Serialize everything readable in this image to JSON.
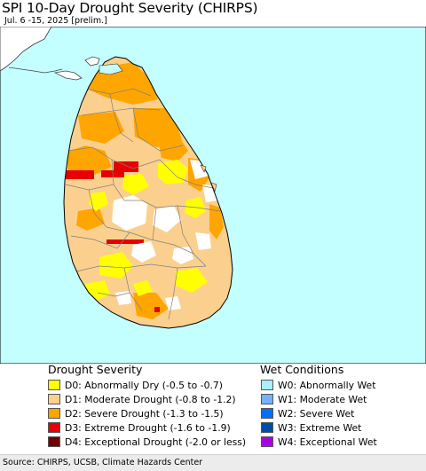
{
  "header": {
    "title": "SPI 10-Day Drought Severity (CHIRPS)",
    "subtitle": "Jul. 6 -15, 2025 [prelim.]"
  },
  "colors": {
    "sea": "#c4ffff",
    "land_base": "#fbd08e",
    "border": "#808080",
    "frame": "#000000"
  },
  "legend": {
    "drought_title": "Drought Severity",
    "drought": [
      {
        "code": "D0",
        "label": "D0: Abnormally Dry (-0.5 to -0.7)",
        "color": "#ffff00"
      },
      {
        "code": "D1",
        "label": "D1: Moderate Drought (-0.8 to -1.2)",
        "color": "#fcd18f"
      },
      {
        "code": "D2",
        "label": "D2: Severe Drought (-1.3 to -1.5)",
        "color": "#ffa500"
      },
      {
        "code": "D3",
        "label": "D3: Extreme Drought (-1.6 to -1.9)",
        "color": "#e60000"
      },
      {
        "code": "D4",
        "label": "D4: Exceptional Drought (-2.0 or less)",
        "color": "#730000"
      }
    ],
    "wet_title": "Wet Conditions",
    "wet": [
      {
        "code": "W0",
        "label": "W0: Abnormally Wet",
        "color": "#aaeeff"
      },
      {
        "code": "W1",
        "label": "W1: Moderate Wet",
        "color": "#73b2ff"
      },
      {
        "code": "W2",
        "label": "W2: Severe Wet",
        "color": "#0070ff"
      },
      {
        "code": "W3",
        "label": "W3: Extreme Wet",
        "color": "#004da8"
      },
      {
        "code": "W4",
        "label": "W4: Exceptional Wet",
        "color": "#a900e6"
      }
    ]
  },
  "footer": {
    "source": "Source: CHIRPS, UCSB, Climate Hazards Center"
  }
}
